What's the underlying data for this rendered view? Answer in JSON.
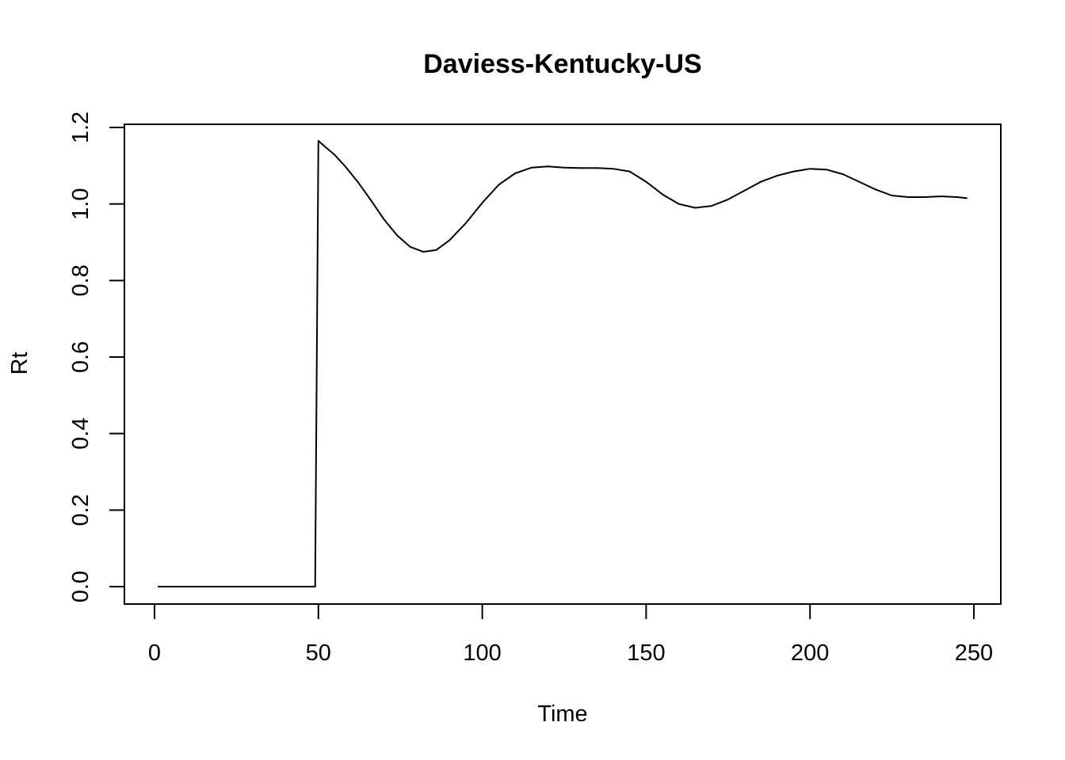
{
  "chart_data": {
    "type": "line",
    "title": "Daviess-Kentucky-US",
    "xlabel": "Time",
    "ylabel": "Rt",
    "xlim": [
      0,
      250
    ],
    "ylim": [
      0,
      1.2
    ],
    "x_ticks": [
      0,
      50,
      100,
      150,
      200,
      250
    ],
    "y_ticks": [
      0.0,
      0.2,
      0.4,
      0.6,
      0.8,
      1.0,
      1.2
    ],
    "x_tick_labels": [
      "0",
      "50",
      "100",
      "150",
      "200",
      "250"
    ],
    "y_tick_labels": [
      "0.0",
      "0.2",
      "0.4",
      "0.6",
      "0.8",
      "1.0",
      "1.2"
    ],
    "grid": false,
    "line_color": "#000000",
    "series": [
      {
        "x": [
          1,
          10,
          20,
          30,
          40,
          48,
          49,
          50,
          52,
          55,
          58,
          62,
          66,
          70,
          74,
          78,
          82,
          86,
          90,
          95,
          100,
          105,
          110,
          115,
          120,
          125,
          130,
          135,
          140,
          145,
          150,
          155,
          160,
          165,
          170,
          175,
          180,
          185,
          190,
          195,
          200,
          205,
          210,
          215,
          220,
          225,
          230,
          235,
          240,
          245,
          248
        ],
        "y": [
          0,
          0,
          0,
          0,
          0,
          0,
          0.0,
          1.165,
          1.15,
          1.128,
          1.1,
          1.058,
          1.01,
          0.96,
          0.918,
          0.888,
          0.875,
          0.88,
          0.905,
          0.95,
          1.003,
          1.05,
          1.08,
          1.095,
          1.098,
          1.095,
          1.094,
          1.094,
          1.092,
          1.085,
          1.058,
          1.025,
          1.0,
          0.99,
          0.995,
          1.012,
          1.035,
          1.058,
          1.074,
          1.085,
          1.092,
          1.09,
          1.078,
          1.058,
          1.038,
          1.022,
          1.018,
          1.018,
          1.02,
          1.018,
          1.015
        ]
      }
    ]
  }
}
